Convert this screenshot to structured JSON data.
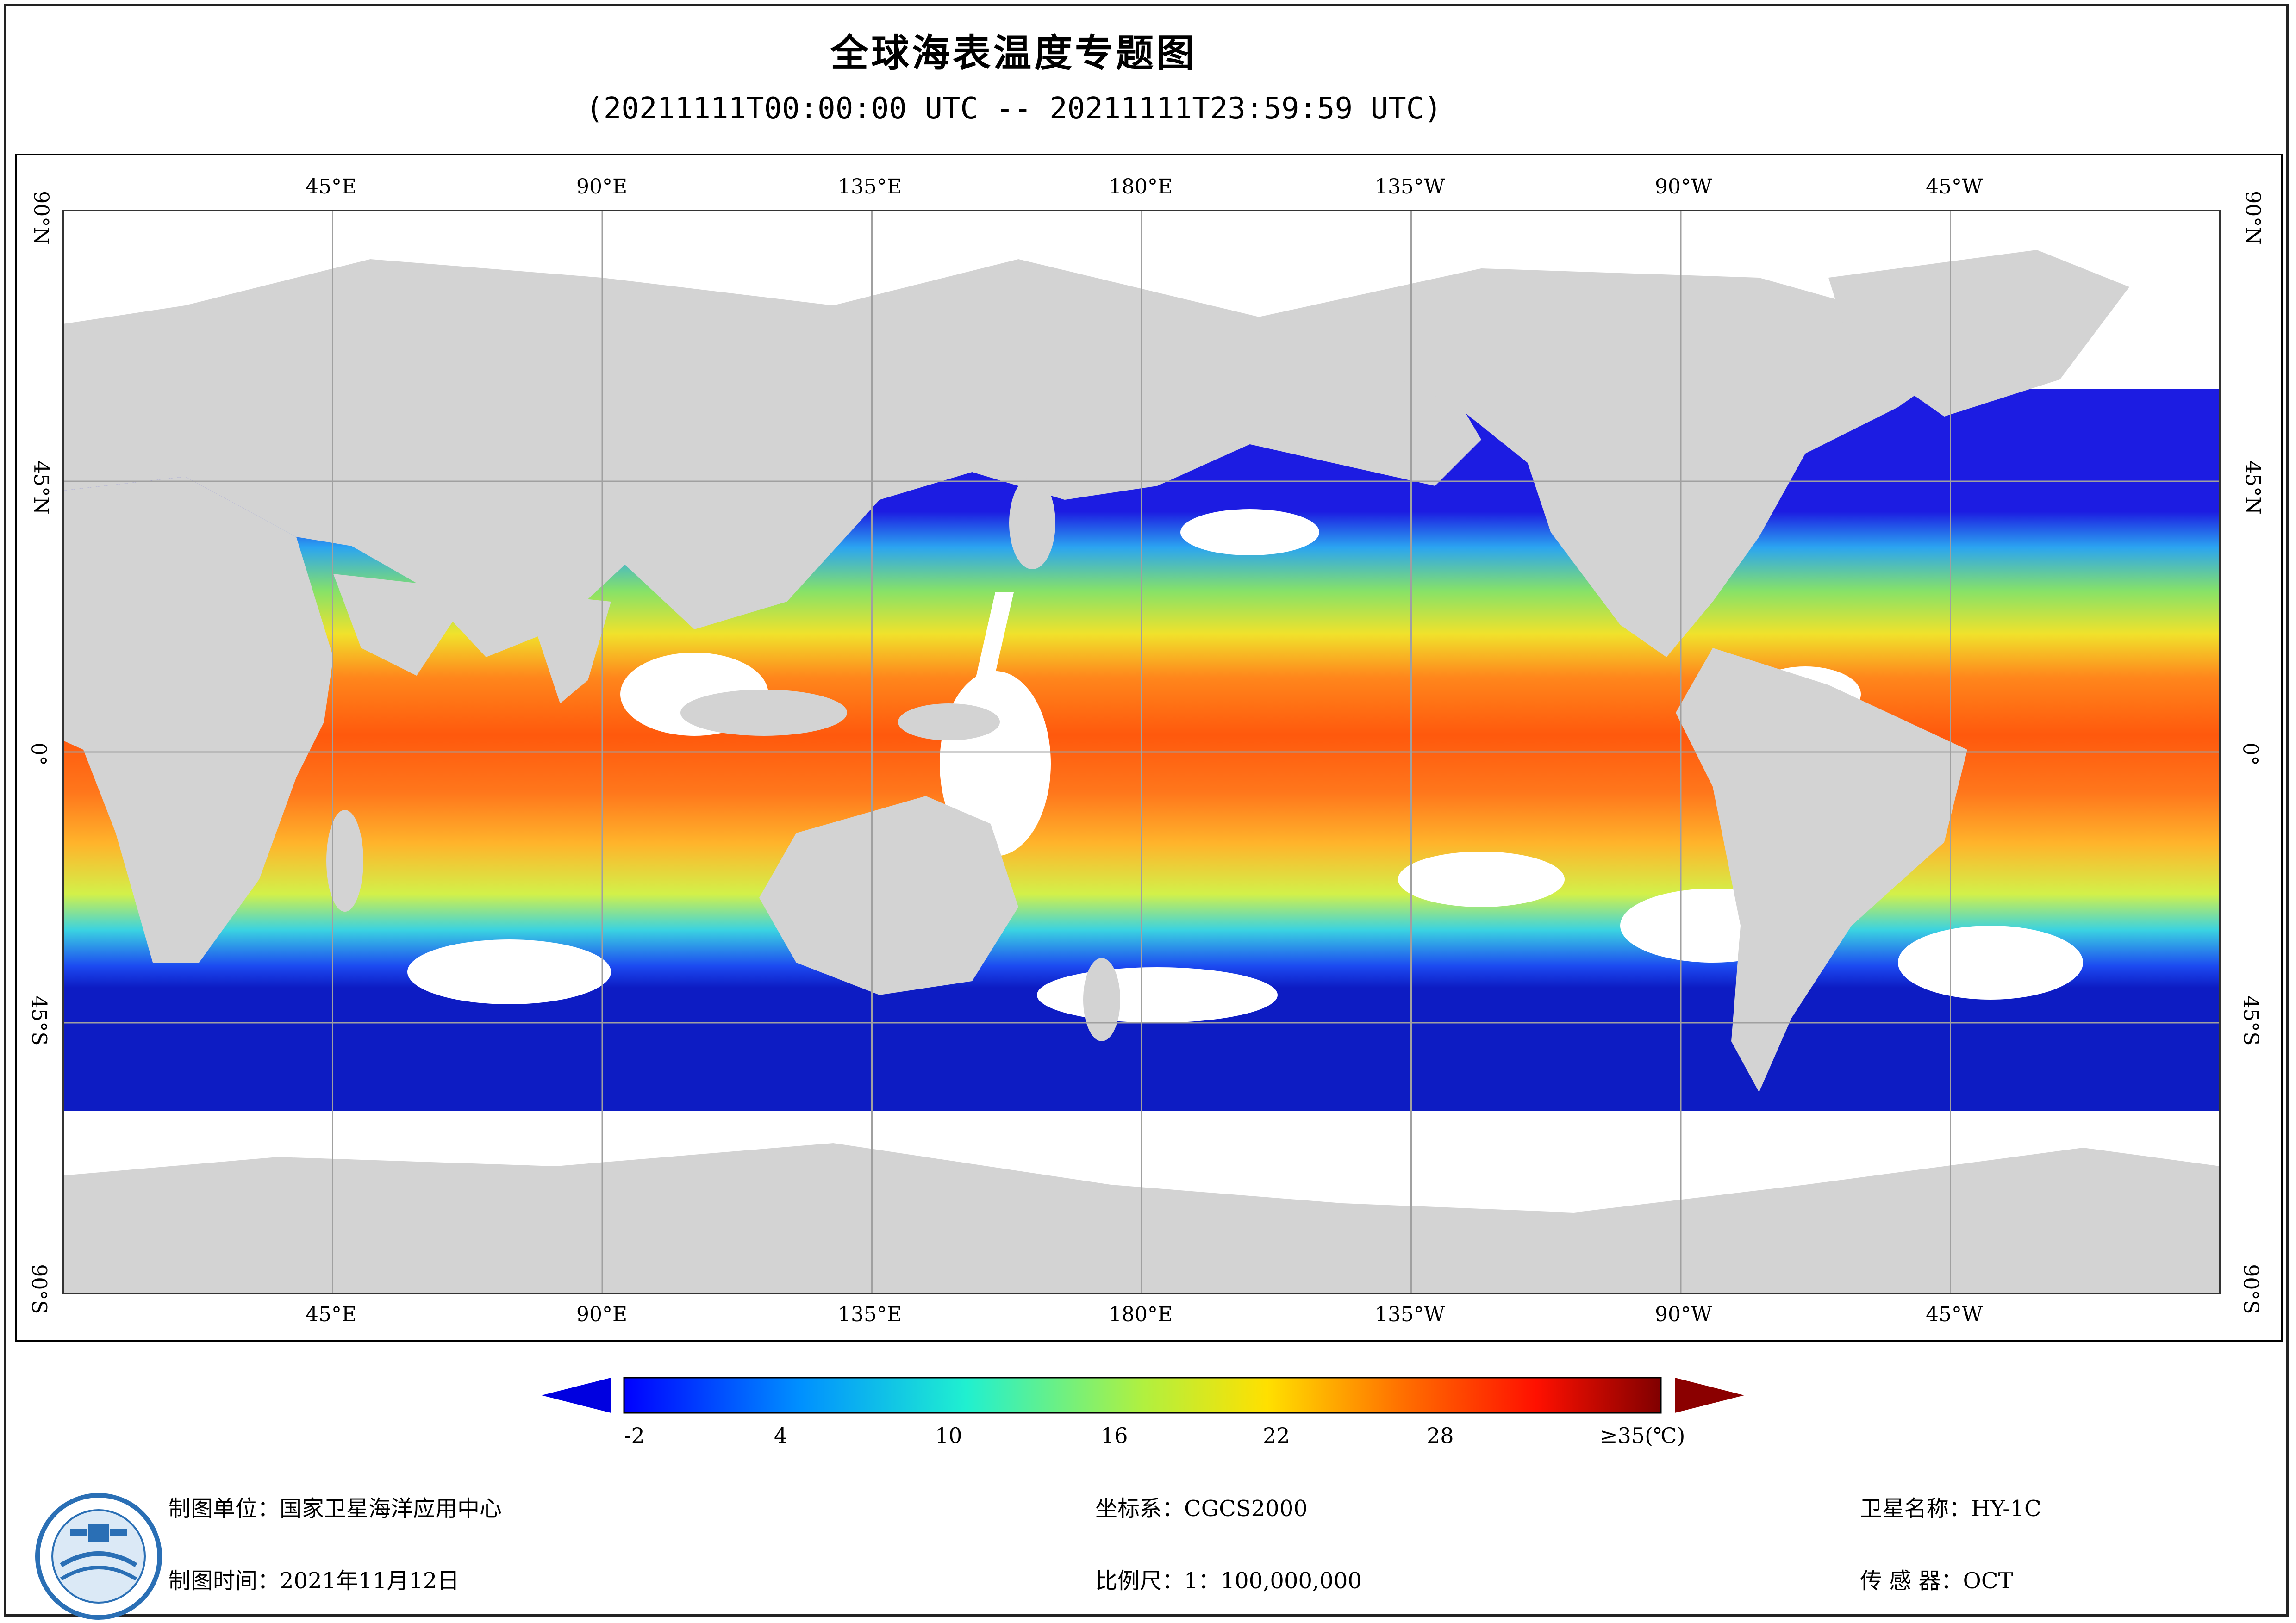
{
  "header": {
    "title": "全球海表温度专题图",
    "subtitle": "(20211111T00:00:00 UTC -- 20211111T23:59:59 UTC)"
  },
  "map": {
    "top_longitude_labels": [
      "45°E",
      "90°E",
      "135°E",
      "180°E",
      "135°W",
      "90°W",
      "45°W"
    ],
    "bottom_longitude_labels": [
      "45°E",
      "90°E",
      "135°E",
      "180°E",
      "135°W",
      "90°W",
      "45°W"
    ],
    "latitude_labels": [
      "90°N",
      "45°N",
      "0°",
      "45°S",
      "90°S"
    ],
    "colors": {
      "land": "#d3d3d3",
      "no_data": "#ffffff",
      "gridline": "#a0a0a0"
    }
  },
  "legend": {
    "tick_labels": [
      "-2",
      "4",
      "10",
      "16",
      "22",
      "28",
      "≥35(℃)"
    ],
    "under_color": "#0000e0",
    "over_color": "#8b0000"
  },
  "footer": {
    "producer": "制图单位：国家卫星海洋应用中心",
    "date": "制图时间：2021年11月12日",
    "coordinate_system": "坐标系：CGCS2000",
    "scale": "比例尺：1：100,000,000",
    "satellite": "卫星名称：HY-1C",
    "sensor": "传  感  器：OCT"
  }
}
